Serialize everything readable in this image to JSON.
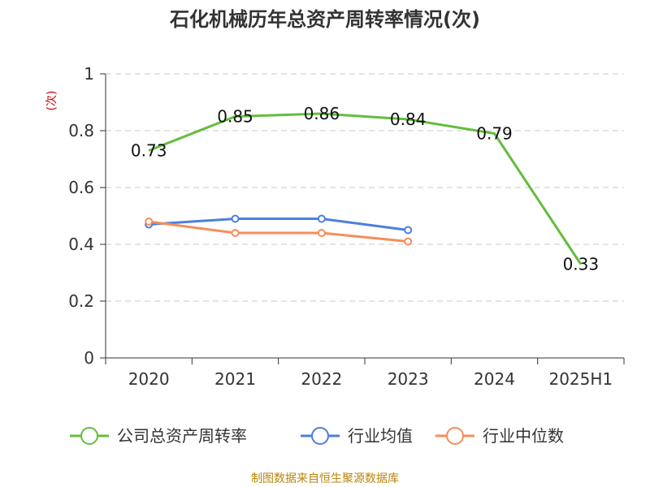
{
  "colors": {
    "series": [
      "#64bd3d",
      "#4c7fdd",
      "#f78d59"
    ],
    "grid": "#c8c8c8",
    "axis": "#333333",
    "ylabel": "#cc0000",
    "source": "#b8860b"
  },
  "chart_data": {
    "type": "line",
    "title": "石化机械历年总资产周转率情况(次)",
    "ylabel": "(次)",
    "xlabel": "",
    "categories": [
      "2020",
      "2021",
      "2022",
      "2023",
      "2024",
      "2025H1"
    ],
    "ylim": [
      0,
      1
    ],
    "yticks": [
      0,
      0.2,
      0.4,
      0.6,
      0.8,
      1
    ],
    "ytick_labels": [
      "0",
      "0.2",
      "0.4",
      "0.6",
      "0.8",
      "1"
    ],
    "grid": true,
    "legend_position": "bottom",
    "series": [
      {
        "name": "公司总资产周转率",
        "values": [
          0.73,
          0.85,
          0.86,
          0.84,
          0.79,
          0.33
        ],
        "labels": [
          "0.73",
          "0.85",
          "0.86",
          "0.84",
          "0.79",
          "0.33"
        ],
        "show_markers": false,
        "show_labels": true
      },
      {
        "name": "行业均值",
        "values": [
          0.47,
          0.49,
          0.49,
          0.45,
          null,
          null
        ],
        "show_markers": true,
        "show_labels": false
      },
      {
        "name": "行业中位数",
        "values": [
          0.48,
          0.44,
          0.44,
          0.41,
          null,
          null
        ],
        "show_markers": true,
        "show_labels": false
      }
    ]
  },
  "source": "制图数据来自恒生聚源数据库"
}
